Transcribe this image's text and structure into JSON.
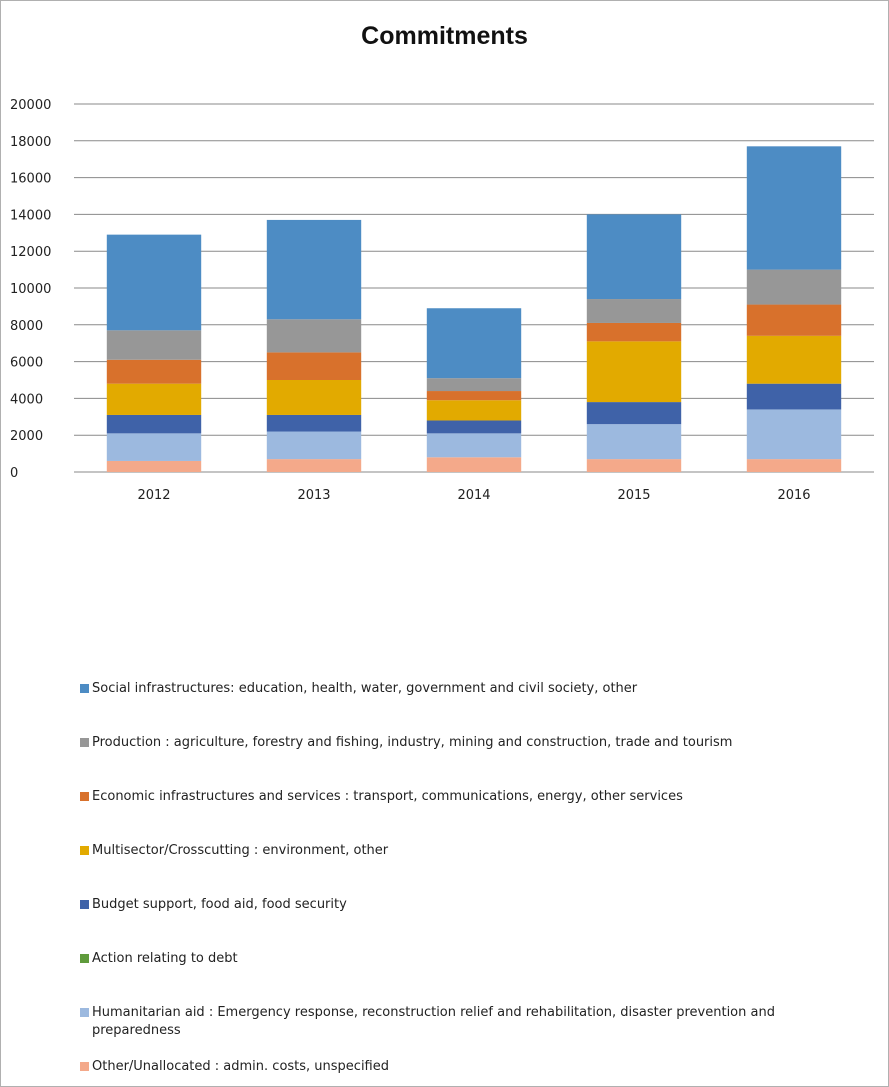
{
  "chart_data": {
    "type": "bar",
    "stacked": true,
    "title": "Commitments",
    "categories": [
      "2012",
      "2013",
      "2014",
      "2015",
      "2016"
    ],
    "ylim": [
      0,
      20000
    ],
    "yticks": [
      0,
      2000,
      4000,
      6000,
      8000,
      10000,
      12000,
      14000,
      16000,
      18000,
      20000
    ],
    "grid": true,
    "legend_position": "bottom",
    "series": [
      {
        "name": "Other/Unallocated : admin. costs, unspecified",
        "color": "#f4a98a",
        "values": [
          600,
          700,
          800,
          700,
          700
        ]
      },
      {
        "name": "Humanitarian aid : Emergency response, reconstruction relief and rehabilitation, disaster prevention and preparedness",
        "color": "#9cb9df",
        "values": [
          1500,
          1500,
          1300,
          1900,
          2700
        ]
      },
      {
        "name": "Action relating to debt",
        "color": "#5f9b3c",
        "values": [
          0,
          0,
          0,
          0,
          0
        ]
      },
      {
        "name": "Budget support, food aid, food security",
        "color": "#3f62a8",
        "values": [
          1000,
          900,
          700,
          1200,
          1400
        ]
      },
      {
        "name": "Multisector/Crosscutting : environment, other",
        "color": "#e2aa00",
        "values": [
          1700,
          1900,
          1100,
          3300,
          2600
        ]
      },
      {
        "name": "Economic infrastructures and services : transport, communications, energy, other services",
        "color": "#d8712c",
        "values": [
          1300,
          1500,
          500,
          1000,
          1700
        ]
      },
      {
        "name": "Production : agriculture, forestry and fishing, industry, mining and construction, trade and tourism",
        "color": "#979797",
        "values": [
          1600,
          1800,
          700,
          1300,
          1900
        ]
      },
      {
        "name": "Social infrastructures: education, health, water, government and civil society, other",
        "color": "#4d8cc4",
        "values": [
          5200,
          5400,
          3800,
          4600,
          6700
        ]
      }
    ],
    "legend_order": [
      7,
      6,
      5,
      4,
      3,
      2,
      1,
      0
    ]
  }
}
